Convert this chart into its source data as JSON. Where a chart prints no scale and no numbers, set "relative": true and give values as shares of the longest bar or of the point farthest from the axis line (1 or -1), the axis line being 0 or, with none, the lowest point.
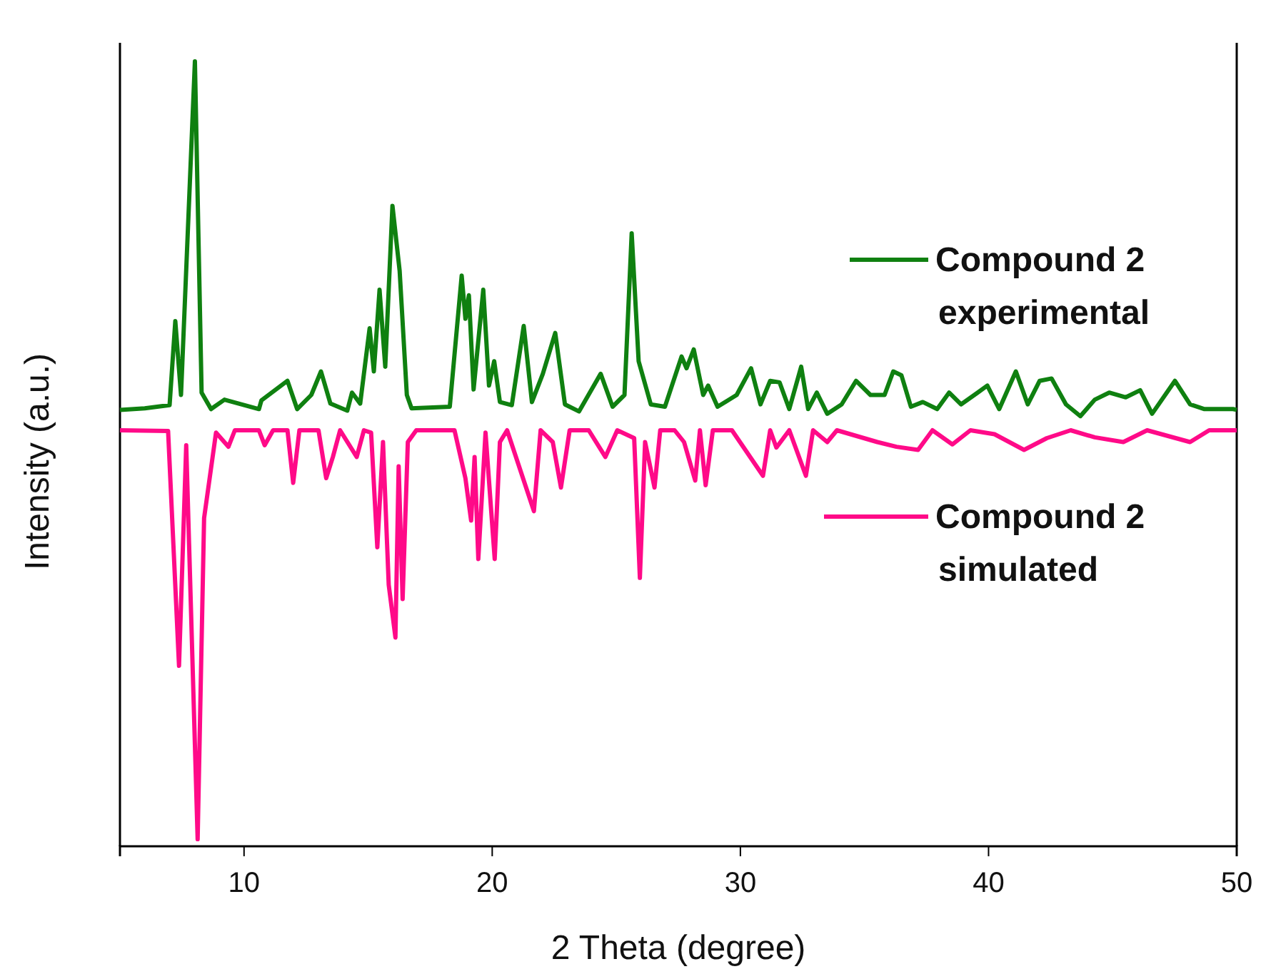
{
  "chart_data": {
    "type": "line",
    "relative": true,
    "xlabel": "2 Theta (degree)",
    "ylabel": "Intensity (a.u.)",
    "xlim": [
      5,
      50
    ],
    "xticks": [
      10,
      20,
      30,
      40,
      50
    ],
    "legend": "right",
    "grid": false,
    "marker": "none",
    "line_style": "solid",
    "series": [
      {
        "name": "Compound 2 experimental",
        "color": "#0f8010",
        "x": [
          5,
          6,
          7,
          7.23,
          7.46,
          8.02,
          8.29,
          8.67,
          9.21,
          10.6,
          10.7,
          11.75,
          12.14,
          12.71,
          13.1,
          13.48,
          14.16,
          14.35,
          14.68,
          15.06,
          15.23,
          15.46,
          15.69,
          15.98,
          16.27,
          16.56,
          16.75,
          18.29,
          18.77,
          18.92,
          19.06,
          19.25,
          19.64,
          19.87,
          20.08,
          20.31,
          20.79,
          21.27,
          21.6,
          22.04,
          22.54,
          22.93,
          23.5,
          24.37,
          24.85,
          25.33,
          25.62,
          25.9,
          26.39,
          26.96,
          27.63,
          27.83,
          28.12,
          28.5,
          28.7,
          29.08,
          29.85,
          30.43,
          30.81,
          31.2,
          31.58,
          31.97,
          32.45,
          32.73,
          33.08,
          33.5,
          34.08,
          34.66,
          35.24,
          35.81,
          36.16,
          36.49,
          36.87,
          37.35,
          37.93,
          38.41,
          38.89,
          39.56,
          39.95,
          40.43,
          41.1,
          41.58,
          42.06,
          42.54,
          43.12,
          43.7,
          44.28,
          44.86,
          45.53,
          46.11,
          46.59,
          47.51,
          48.12,
          48.7,
          49.85,
          50
        ],
        "values": [
          0.556,
          0.558,
          0.562,
          0.669,
          0.575,
          1.0,
          0.578,
          0.557,
          0.569,
          0.557,
          0.568,
          0.593,
          0.557,
          0.575,
          0.605,
          0.564,
          0.555,
          0.578,
          0.564,
          0.66,
          0.605,
          0.709,
          0.611,
          0.816,
          0.733,
          0.575,
          0.558,
          0.56,
          0.727,
          0.672,
          0.702,
          0.582,
          0.709,
          0.587,
          0.618,
          0.566,
          0.562,
          0.663,
          0.566,
          0.602,
          0.654,
          0.563,
          0.554,
          0.602,
          0.56,
          0.575,
          0.781,
          0.618,
          0.563,
          0.56,
          0.624,
          0.609,
          0.633,
          0.575,
          0.587,
          0.56,
          0.575,
          0.609,
          0.563,
          0.593,
          0.591,
          0.557,
          0.611,
          0.557,
          0.578,
          0.551,
          0.563,
          0.593,
          0.575,
          0.575,
          0.605,
          0.6,
          0.56,
          0.566,
          0.557,
          0.578,
          0.563,
          0.578,
          0.587,
          0.557,
          0.605,
          0.563,
          0.593,
          0.596,
          0.563,
          0.548,
          0.569,
          0.578,
          0.572,
          0.581,
          0.551,
          0.593,
          0.563,
          0.557,
          0.557,
          0.556
        ]
      },
      {
        "name": "Compound 2 simulated",
        "color": "#ff0a88",
        "x": [
          5,
          6.94,
          7.38,
          7.67,
          8.13,
          8.39,
          8.87,
          9.37,
          9.63,
          10.6,
          10.83,
          11.17,
          11.75,
          11.98,
          12.23,
          13.0,
          13.31,
          13.58,
          13.87,
          14.54,
          14.83,
          15.12,
          15.37,
          15.6,
          15.83,
          16.1,
          16.23,
          16.39,
          16.6,
          16.94,
          18.48,
          18.92,
          19.15,
          19.29,
          19.44,
          19.73,
          20.1,
          20.31,
          20.6,
          21.68,
          21.95,
          22.44,
          22.77,
          23.12,
          23.89,
          24.56,
          25.04,
          25.72,
          25.95,
          26.16,
          26.54,
          26.77,
          27.35,
          27.73,
          28.18,
          28.37,
          28.6,
          28.89,
          29.66,
          30.91,
          31.2,
          31.45,
          31.97,
          32.64,
          32.93,
          33.5,
          33.89,
          35.52,
          36.29,
          37.16,
          37.74,
          38.54,
          39.27,
          40.24,
          41.43,
          42.35,
          43.31,
          44.28,
          45.43,
          46.39,
          48.12,
          48.89,
          49.85,
          50
        ],
        "values": [
          0.53,
          0.529,
          0.23,
          0.511,
          0.009,
          0.418,
          0.527,
          0.509,
          0.53,
          0.53,
          0.511,
          0.53,
          0.53,
          0.463,
          0.53,
          0.53,
          0.469,
          0.496,
          0.53,
          0.496,
          0.53,
          0.527,
          0.381,
          0.515,
          0.333,
          0.266,
          0.484,
          0.315,
          0.515,
          0.53,
          0.53,
          0.469,
          0.415,
          0.496,
          0.366,
          0.527,
          0.366,
          0.515,
          0.53,
          0.427,
          0.53,
          0.515,
          0.457,
          0.53,
          0.53,
          0.496,
          0.53,
          0.52,
          0.342,
          0.515,
          0.457,
          0.53,
          0.53,
          0.515,
          0.466,
          0.53,
          0.46,
          0.53,
          0.53,
          0.472,
          0.53,
          0.508,
          0.53,
          0.472,
          0.53,
          0.515,
          0.53,
          0.515,
          0.509,
          0.505,
          0.53,
          0.512,
          0.53,
          0.525,
          0.505,
          0.52,
          0.53,
          0.521,
          0.515,
          0.53,
          0.515,
          0.53,
          0.53,
          0.53
        ]
      }
    ]
  }
}
